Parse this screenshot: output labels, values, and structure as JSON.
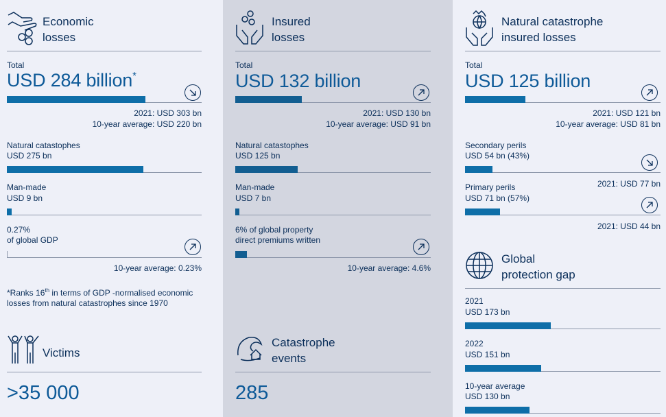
{
  "economic": {
    "title_l1": "Economic",
    "title_l2": "losses",
    "total_label": "Total",
    "total_value": "USD 284 billion",
    "total_mark": "*",
    "total_fill": 0.71,
    "prev_year": "2021: USD 303 bn",
    "ten_year": "10-year average: USD 220 bn",
    "nat_label": "Natural catastophes",
    "nat_value": "USD 275 bn",
    "nat_fill": 0.7,
    "man_label": "Man-made",
    "man_value": "USD 9 bn",
    "man_fill": 0.025,
    "gdp_value": "0.27%",
    "gdp_label": "of global GDP",
    "gdp_avg": "10-year average: 0.23%",
    "footnote_a": "*Ranks 16",
    "footnote_sup": "th",
    "footnote_b": " in terms of GDP -normalised economic",
    "footnote_c": "losses from natural catastrophes since 1970"
  },
  "victims": {
    "title": "Victims",
    "value": ">35 000"
  },
  "insured": {
    "title_l1": "Insured",
    "title_l2": "losses",
    "total_label": "Total",
    "total_value": "USD 132 billion",
    "total_fill": 0.34,
    "prev_year": "2021: USD 130 bn",
    "ten_year": "10-year average: USD 91 bn",
    "nat_label": "Natural catastophes",
    "nat_value": "USD 125 bn",
    "nat_fill": 0.32,
    "man_label": "Man-made",
    "man_value": "USD 7 bn",
    "man_fill": 0.02,
    "prem_l1": "6% of global property",
    "prem_l2": "direct premiums written",
    "prem_fill": 0.06,
    "prem_avg": "10-year average: 4.6%"
  },
  "events": {
    "title_l1": "Catastrophe",
    "title_l2": "events",
    "value": "285"
  },
  "natcat": {
    "title_l1": "Natural catastrophe",
    "title_l2": "insured losses",
    "total_label": "Total",
    "total_value": "USD 125 billion",
    "total_fill": 0.31,
    "prev_year": "2021: USD 121 bn",
    "ten_year": "10-year average: USD 81 bn",
    "sec_label": "Secondary perils",
    "sec_value": "USD 54 bn (43%)",
    "sec_fill": 0.14,
    "sec_prev": "2021: USD 77 bn",
    "pri_label": "Primary perils",
    "pri_value": "USD 71 bn (57%)",
    "pri_fill": 0.18,
    "pri_prev": "2021: USD 44 bn"
  },
  "gap": {
    "title_l1": "Global",
    "title_l2": "protection gap",
    "y1_label": "2021",
    "y1_value": "USD 173 bn",
    "y1_fill": 0.44,
    "y2_label": "2022",
    "y2_value": "USD 151 bn",
    "y2_fill": 0.39,
    "y3_label": "10-year average",
    "y3_value": "USD 130 bn",
    "y3_fill": 0.33
  },
  "colors": {
    "accent": "#0e6ea8",
    "text": "#0b2f5a",
    "highlight_bg": "#d3d6e0"
  },
  "icons": {
    "economic": "hand-coins-icon",
    "insured": "hands-coins-icon",
    "natcat": "hands-globe-icon",
    "victims": "people-icon",
    "events": "wave-house-icon",
    "gap": "globe-icon",
    "arrow_down": "arrow-down-right-icon",
    "arrow_up": "arrow-up-right-icon"
  }
}
